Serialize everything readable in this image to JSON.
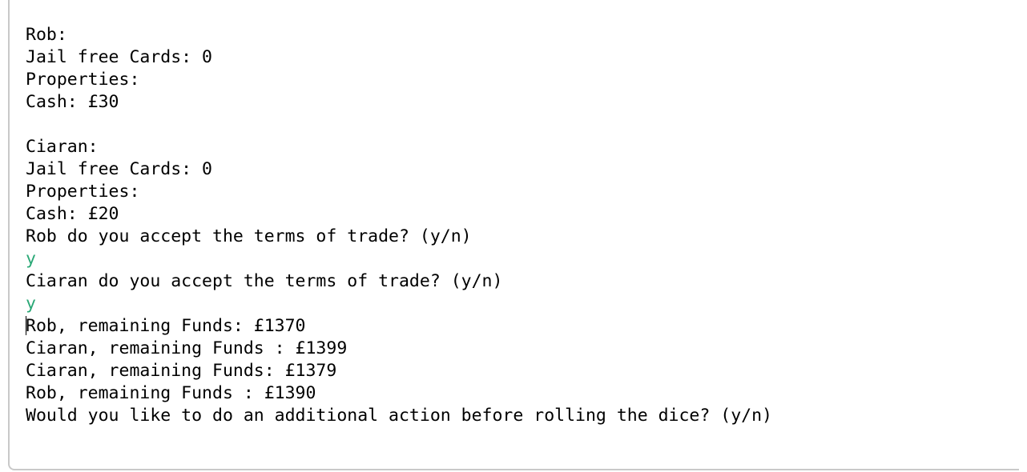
{
  "console": {
    "lines": [
      {
        "text": "Rob:",
        "kind": "output"
      },
      {
        "text": "Jail free Cards: 0",
        "kind": "output"
      },
      {
        "text": "Properties:",
        "kind": "output"
      },
      {
        "text": "Cash: £30",
        "kind": "output"
      },
      {
        "text": "",
        "kind": "output"
      },
      {
        "text": "Ciaran:",
        "kind": "output"
      },
      {
        "text": "Jail free Cards: 0",
        "kind": "output"
      },
      {
        "text": "Properties:",
        "kind": "output"
      },
      {
        "text": "Cash: £20",
        "kind": "output"
      },
      {
        "text": "Rob do you accept the terms of trade? (y/n)",
        "kind": "output"
      },
      {
        "text": "y",
        "kind": "input"
      },
      {
        "text": "Ciaran do you accept the terms of trade? (y/n)",
        "kind": "output"
      },
      {
        "text": "y",
        "kind": "input"
      },
      {
        "text": "Rob, remaining Funds: £1370",
        "kind": "output"
      },
      {
        "text": "Ciaran, remaining Funds : £1399",
        "kind": "output"
      },
      {
        "text": "Ciaran, remaining Funds: £1379",
        "kind": "output"
      },
      {
        "text": "Rob, remaining Funds : £1390",
        "kind": "output"
      },
      {
        "text": "Would you like to do an additional action before rolling the dice? (y/n)",
        "kind": "output"
      }
    ]
  },
  "colors": {
    "output_text": "#000000",
    "input_text": "#2aa876",
    "frame_border": "#c9c9c9"
  }
}
